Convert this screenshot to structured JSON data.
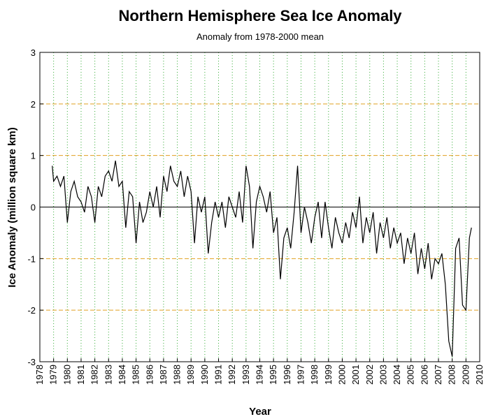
{
  "chart_data": {
    "type": "line",
    "title": "Northern Hemisphere Sea Ice Anomaly",
    "subtitle": "Anomaly from 1978-2000 mean",
    "x_label": "Year",
    "y_label": "Ice Anomaly (million square km)",
    "color": "#000000",
    "grid": true,
    "x": [
      1978.9,
      1979,
      1979.25,
      1979.5,
      1979.75,
      1980,
      1980.25,
      1980.5,
      1980.75,
      1981,
      1981.25,
      1981.5,
      1981.75,
      1982,
      1982.25,
      1982.5,
      1982.75,
      1983,
      1983.25,
      1983.5,
      1983.75,
      1984,
      1984.25,
      1984.5,
      1984.75,
      1985,
      1985.25,
      1985.5,
      1985.75,
      1986,
      1986.25,
      1986.5,
      1986.75,
      1987,
      1987.25,
      1987.5,
      1987.75,
      1988,
      1988.25,
      1988.5,
      1988.75,
      1989,
      1989.25,
      1989.5,
      1989.75,
      1990,
      1990.25,
      1990.5,
      1990.75,
      1991,
      1991.25,
      1991.5,
      1991.75,
      1992,
      1992.25,
      1992.5,
      1992.75,
      1993,
      1993.25,
      1993.5,
      1993.75,
      1994,
      1994.25,
      1994.5,
      1994.75,
      1995,
      1995.25,
      1995.5,
      1995.75,
      1996,
      1996.25,
      1996.5,
      1996.75,
      1997,
      1997.25,
      1997.5,
      1997.75,
      1998,
      1998.25,
      1998.5,
      1998.75,
      1999,
      1999.25,
      1999.5,
      1999.75,
      2000,
      2000.25,
      2000.5,
      2000.75,
      2001,
      2001.25,
      2001.5,
      2001.75,
      2002,
      2002.25,
      2002.5,
      2002.75,
      2003,
      2003.25,
      2003.5,
      2003.75,
      2004,
      2004.25,
      2004.5,
      2004.75,
      2005,
      2005.25,
      2005.5,
      2005.75,
      2006,
      2006.25,
      2006.5,
      2006.75,
      2007,
      2007.25,
      2007.5,
      2007.75,
      2008,
      2008.25,
      2008.5,
      2008.75,
      2009,
      2009.25,
      2009.4
    ],
    "values": [
      0.8,
      0.5,
      0.6,
      0.4,
      0.6,
      -0.3,
      0.3,
      0.5,
      0.2,
      0.1,
      -0.1,
      0.4,
      0.2,
      -0.3,
      0.4,
      0.2,
      0.6,
      0.7,
      0.5,
      0.9,
      0.4,
      0.5,
      -0.4,
      0.3,
      0.2,
      -0.7,
      0.1,
      -0.3,
      -0.1,
      0.3,
      0.0,
      0.4,
      -0.2,
      0.6,
      0.3,
      0.8,
      0.5,
      0.4,
      0.7,
      0.2,
      0.6,
      0.3,
      -0.7,
      0.2,
      -0.1,
      0.2,
      -0.9,
      -0.3,
      0.1,
      -0.2,
      0.1,
      -0.4,
      0.2,
      0.0,
      -0.2,
      0.3,
      -0.3,
      0.8,
      0.4,
      -0.8,
      0.1,
      0.4,
      0.2,
      -0.1,
      0.3,
      -0.5,
      -0.2,
      -1.4,
      -0.6,
      -0.4,
      -0.8,
      -0.1,
      0.8,
      -0.5,
      0.0,
      -0.3,
      -0.7,
      -0.2,
      0.1,
      -0.6,
      0.1,
      -0.4,
      -0.8,
      -0.2,
      -0.5,
      -0.7,
      -0.3,
      -0.6,
      -0.1,
      -0.4,
      0.2,
      -0.7,
      -0.2,
      -0.5,
      -0.1,
      -0.9,
      -0.3,
      -0.6,
      -0.2,
      -0.8,
      -0.4,
      -0.7,
      -0.5,
      -1.1,
      -0.6,
      -0.9,
      -0.5,
      -1.3,
      -0.8,
      -1.2,
      -0.7,
      -1.4,
      -1.0,
      -1.1,
      -0.9,
      -1.5,
      -2.6,
      -2.9,
      -0.8,
      -0.6,
      -1.9,
      -2.0,
      -0.6,
      -0.4
    ],
    "xlim": [
      1978,
      2010
    ],
    "xticks": [
      1978,
      1979,
      1980,
      1981,
      1982,
      1983,
      1984,
      1985,
      1986,
      1987,
      1988,
      1989,
      1990,
      1991,
      1992,
      1993,
      1994,
      1995,
      1996,
      1997,
      1998,
      1999,
      2000,
      2001,
      2002,
      2003,
      2004,
      2005,
      2006,
      2007,
      2008,
      2009,
      2010
    ],
    "ylim": [
      -3,
      3
    ],
    "yticks": [
      -3,
      -2,
      -1,
      0,
      1,
      2,
      3
    ]
  }
}
